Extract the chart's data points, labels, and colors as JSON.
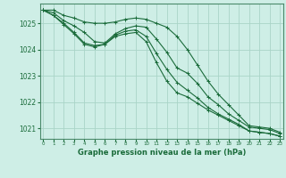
{
  "title": "Graphe pression niveau de la mer (hPa)",
  "background_color": "#ceeee6",
  "grid_color": "#aad4c8",
  "line_color": "#1a6b3a",
  "spine_color": "#4a8a6a",
  "x_ticks": [
    0,
    1,
    2,
    3,
    4,
    5,
    6,
    7,
    8,
    9,
    10,
    11,
    12,
    13,
    14,
    15,
    16,
    17,
    18,
    19,
    20,
    21,
    22,
    23
  ],
  "y_ticks": [
    1021,
    1022,
    1023,
    1024,
    1025
  ],
  "ylim": [
    1020.6,
    1025.75
  ],
  "xlim": [
    -0.3,
    23.3
  ],
  "series": [
    [
      1025.5,
      1025.5,
      1025.3,
      1025.2,
      1025.05,
      1025.0,
      1025.0,
      1025.05,
      1025.15,
      1025.2,
      1025.15,
      1025.0,
      1024.85,
      1024.5,
      1024.0,
      1023.4,
      1022.8,
      1022.3,
      1021.9,
      1021.5,
      1021.1,
      1021.05,
      1021.0,
      1020.85
    ],
    [
      1025.5,
      1025.4,
      1025.1,
      1024.9,
      1024.65,
      1024.3,
      1024.25,
      1024.6,
      1024.8,
      1024.9,
      1024.85,
      1024.4,
      1023.9,
      1023.3,
      1023.1,
      1022.7,
      1022.2,
      1021.9,
      1021.55,
      1021.3,
      1021.05,
      1021.0,
      1020.95,
      1020.8
    ],
    [
      1025.5,
      1025.3,
      1025.0,
      1024.65,
      1024.25,
      1024.15,
      1024.2,
      1024.55,
      1024.7,
      1024.75,
      1024.5,
      1023.85,
      1023.25,
      1022.75,
      1022.45,
      1022.15,
      1021.8,
      1021.55,
      1021.35,
      1021.15,
      1020.9,
      1020.85,
      1020.8,
      1020.7
    ],
    [
      1025.5,
      1025.3,
      1024.95,
      1024.6,
      1024.2,
      1024.1,
      1024.2,
      1024.5,
      1024.6,
      1024.65,
      1024.3,
      1023.5,
      1022.8,
      1022.35,
      1022.2,
      1021.95,
      1021.7,
      1021.5,
      1021.3,
      1021.1,
      1020.9,
      1020.85,
      1020.8,
      1020.7
    ]
  ]
}
